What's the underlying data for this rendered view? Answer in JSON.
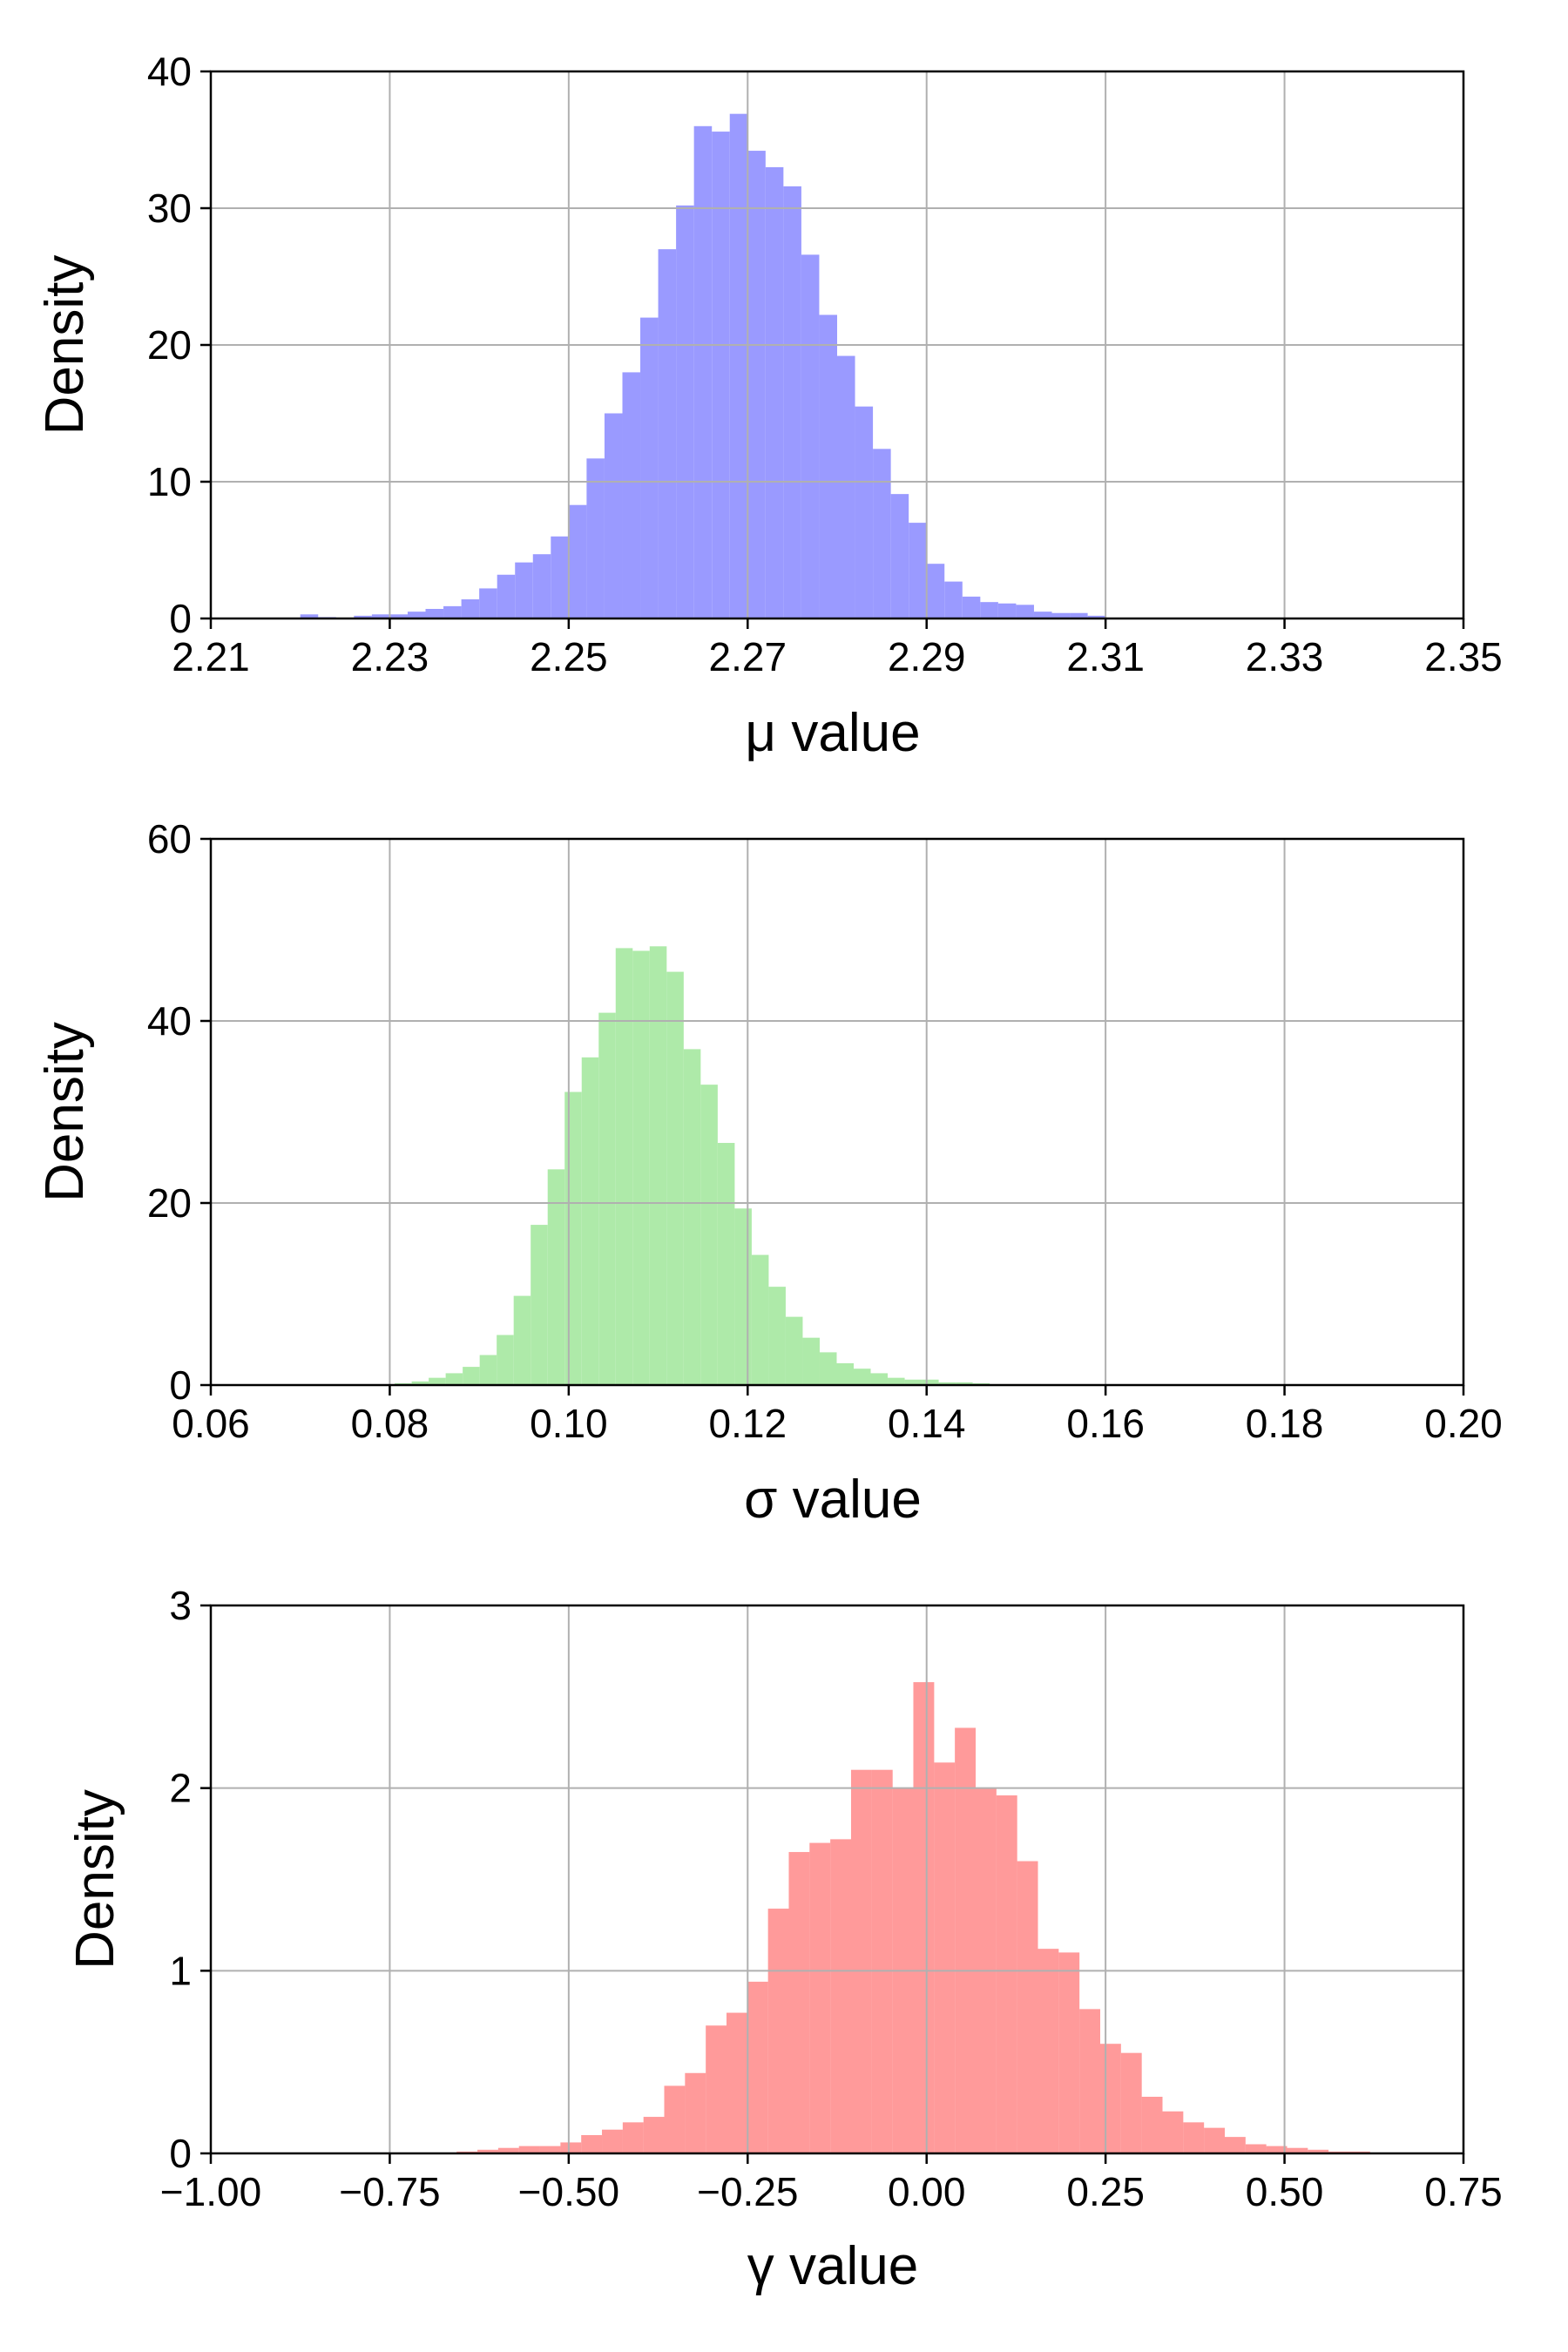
{
  "chart_data": [
    {
      "type": "bar",
      "subtype": "histogram",
      "xlabel": "μ value",
      "ylabel": "Density",
      "xlim": [
        2.21,
        2.35
      ],
      "ylim": [
        0,
        40
      ],
      "xticks": [
        "2.21",
        "2.23",
        "2.25",
        "2.27",
        "2.29",
        "2.31",
        "2.33",
        "2.35"
      ],
      "yticks": [
        "0",
        "10",
        "20",
        "30",
        "40"
      ],
      "grid": true,
      "color": "#9a9aff",
      "bin_width": 0.002,
      "bins": [
        [
          2.221,
          0.3
        ],
        [
          2.223,
          0.1
        ],
        [
          2.225,
          0.0
        ],
        [
          2.227,
          0.2
        ],
        [
          2.229,
          0.3
        ],
        [
          2.231,
          0.3
        ],
        [
          2.233,
          0.5
        ],
        [
          2.235,
          0.7
        ],
        [
          2.237,
          0.9
        ],
        [
          2.239,
          1.4
        ],
        [
          2.241,
          2.2
        ],
        [
          2.243,
          3.2
        ],
        [
          2.245,
          4.1
        ],
        [
          2.247,
          4.7
        ],
        [
          2.249,
          6.0
        ],
        [
          2.251,
          8.3
        ],
        [
          2.253,
          11.7
        ],
        [
          2.255,
          15.0
        ],
        [
          2.257,
          18.0
        ],
        [
          2.259,
          22.0
        ],
        [
          2.261,
          27.0
        ],
        [
          2.263,
          30.2
        ],
        [
          2.265,
          36.0
        ],
        [
          2.267,
          35.6
        ],
        [
          2.269,
          36.9
        ],
        [
          2.271,
          34.2
        ],
        [
          2.273,
          33.0
        ],
        [
          2.275,
          31.6
        ],
        [
          2.277,
          26.6
        ],
        [
          2.279,
          22.2
        ],
        [
          2.281,
          19.2
        ],
        [
          2.283,
          15.5
        ],
        [
          2.285,
          12.4
        ],
        [
          2.287,
          9.1
        ],
        [
          2.289,
          7.0
        ],
        [
          2.291,
          4.0
        ],
        [
          2.293,
          2.7
        ],
        [
          2.295,
          1.6
        ],
        [
          2.297,
          1.2
        ],
        [
          2.299,
          1.1
        ],
        [
          2.301,
          1.0
        ],
        [
          2.303,
          0.5
        ],
        [
          2.305,
          0.4
        ],
        [
          2.307,
          0.4
        ],
        [
          2.309,
          0.2
        ]
      ]
    },
    {
      "type": "bar",
      "subtype": "histogram",
      "xlabel": "σ value",
      "ylabel": "Density",
      "xlim": [
        0.06,
        0.2
      ],
      "ylim": [
        0,
        60
      ],
      "xticks": [
        "0.06",
        "0.08",
        "0.10",
        "0.12",
        "0.14",
        "0.16",
        "0.18",
        "0.20"
      ],
      "yticks": [
        "0",
        "20",
        "40",
        "60"
      ],
      "grid": true,
      "color": "#aeeaa9",
      "bin_width": 0.0019,
      "bins": [
        [
          0.0815,
          0.2
        ],
        [
          0.0834,
          0.4
        ],
        [
          0.0853,
          0.8
        ],
        [
          0.0872,
          1.3
        ],
        [
          0.0891,
          2.0
        ],
        [
          0.091,
          3.3
        ],
        [
          0.0929,
          5.5
        ],
        [
          0.0948,
          9.8
        ],
        [
          0.0967,
          17.6
        ],
        [
          0.0986,
          23.7
        ],
        [
          0.1005,
          32.2
        ],
        [
          0.1024,
          36.0
        ],
        [
          0.1043,
          40.9
        ],
        [
          0.1062,
          48.0
        ],
        [
          0.1081,
          47.7
        ],
        [
          0.11,
          48.2
        ],
        [
          0.1119,
          45.4
        ],
        [
          0.1138,
          36.9
        ],
        [
          0.1157,
          33.0
        ],
        [
          0.1176,
          26.6
        ],
        [
          0.1195,
          19.4
        ],
        [
          0.1214,
          14.3
        ],
        [
          0.1233,
          10.8
        ],
        [
          0.1252,
          7.5
        ],
        [
          0.1271,
          5.2
        ],
        [
          0.129,
          3.6
        ],
        [
          0.1309,
          2.4
        ],
        [
          0.1328,
          1.8
        ],
        [
          0.1347,
          1.3
        ],
        [
          0.1366,
          0.8
        ],
        [
          0.1385,
          0.6
        ],
        [
          0.1404,
          0.6
        ],
        [
          0.1423,
          0.3
        ],
        [
          0.1442,
          0.3
        ],
        [
          0.1461,
          0.2
        ],
        [
          0.148,
          0.1
        ],
        [
          0.1499,
          0.1
        ],
        [
          0.1518,
          0.1
        ]
      ]
    },
    {
      "type": "bar",
      "subtype": "histogram",
      "xlabel": "γ value",
      "ylabel": "Density",
      "xlim": [
        -1.0,
        0.75
      ],
      "ylim": [
        0,
        3
      ],
      "xticks": [
        "−1.00",
        "−0.75",
        "−0.50",
        "−0.25",
        "0.00",
        "0.25",
        "0.50",
        "0.75"
      ],
      "yticks": [
        "0",
        "1",
        "2",
        "3"
      ],
      "grid": true,
      "color": "#ff9a9a",
      "bin_width": 0.0291,
      "bins": [
        [
          -0.642,
          0.01
        ],
        [
          -0.613,
          0.02
        ],
        [
          -0.584,
          0.03
        ],
        [
          -0.555,
          0.04
        ],
        [
          -0.526,
          0.04
        ],
        [
          -0.497,
          0.06
        ],
        [
          -0.468,
          0.1
        ],
        [
          -0.439,
          0.13
        ],
        [
          -0.41,
          0.17
        ],
        [
          -0.381,
          0.2
        ],
        [
          -0.352,
          0.37
        ],
        [
          -0.323,
          0.44
        ],
        [
          -0.294,
          0.7
        ],
        [
          -0.265,
          0.77
        ],
        [
          -0.236,
          0.94
        ],
        [
          -0.207,
          1.34
        ],
        [
          -0.178,
          1.65
        ],
        [
          -0.149,
          1.7
        ],
        [
          -0.12,
          1.72
        ],
        [
          -0.091,
          2.1
        ],
        [
          -0.062,
          2.1
        ],
        [
          -0.033,
          2.0
        ],
        [
          -0.004,
          2.58
        ],
        [
          0.025,
          2.14
        ],
        [
          0.054,
          2.33
        ],
        [
          0.083,
          2.0
        ],
        [
          0.112,
          1.96
        ],
        [
          0.141,
          1.6
        ],
        [
          0.17,
          1.12
        ],
        [
          0.199,
          1.1
        ],
        [
          0.228,
          0.79
        ],
        [
          0.257,
          0.6
        ],
        [
          0.286,
          0.55
        ],
        [
          0.315,
          0.31
        ],
        [
          0.344,
          0.23
        ],
        [
          0.373,
          0.17
        ],
        [
          0.402,
          0.14
        ],
        [
          0.431,
          0.09
        ],
        [
          0.46,
          0.05
        ],
        [
          0.489,
          0.04
        ],
        [
          0.518,
          0.03
        ],
        [
          0.547,
          0.02
        ],
        [
          0.576,
          0.01
        ],
        [
          0.605,
          0.01
        ]
      ]
    }
  ]
}
